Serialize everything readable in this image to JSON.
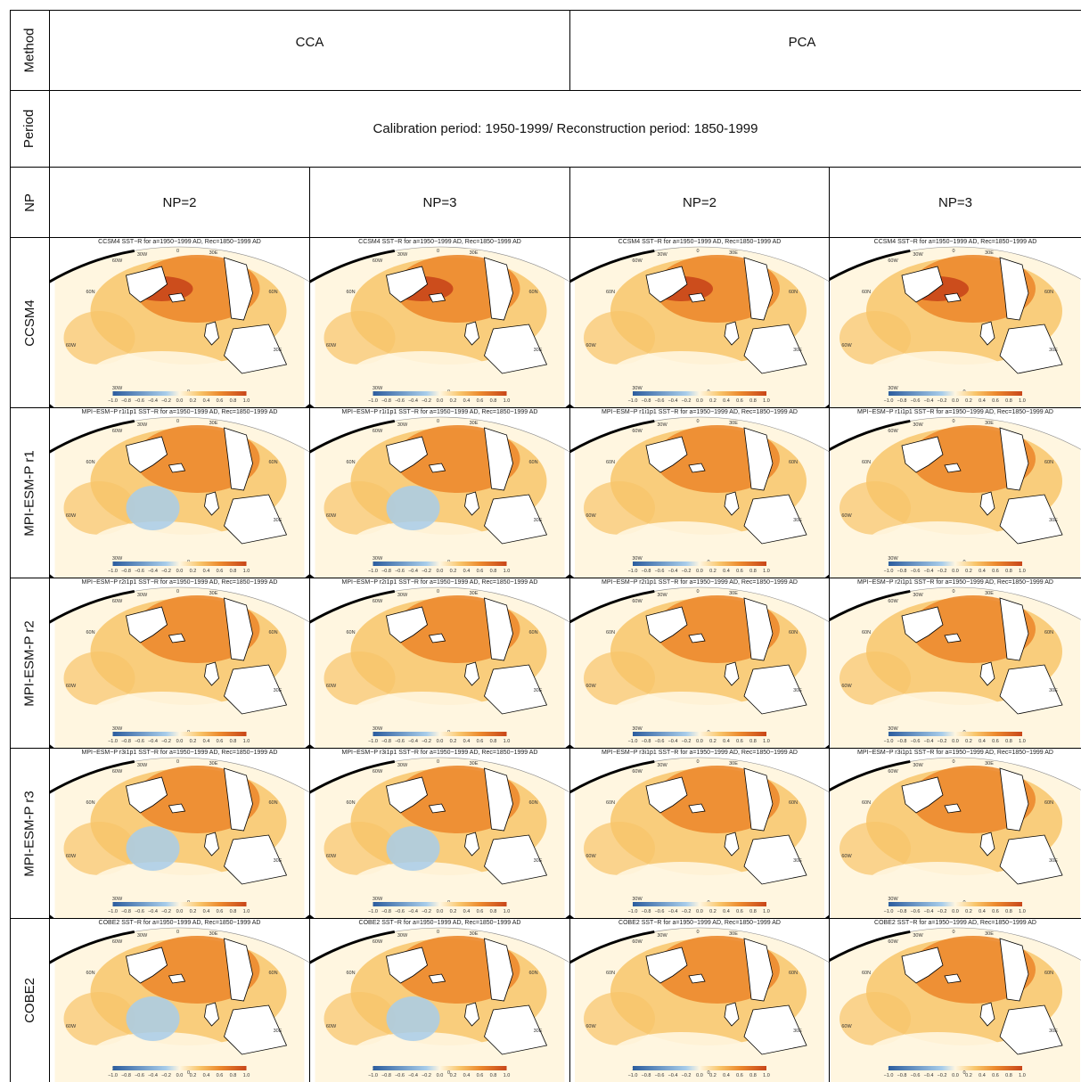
{
  "table": {
    "row_headers": {
      "method": "Method",
      "period": "Period",
      "np": "NP"
    },
    "method_values": [
      "CCA",
      "PCA"
    ],
    "period_value": "Calibration period: 1950-1999/ Reconstruction period: 1850-1999",
    "np_values": [
      "NP=2",
      "NP=3",
      "NP=2",
      "NP=3"
    ],
    "models": [
      {
        "label": "CCSM4",
        "titles": [
          "CCSM4 SST−R for a=1950−1999 AD, Rec=1850−1999 AD",
          "CCSM4 SST−R for a=1950−1999 AD, Rec=1850−1999 AD",
          "CCSM4 SST−R for a=1950−1999 AD, Rec=1850−1999 AD",
          "CCSM4 SST−R for a=1950−1999 AD, Rec=1850−1999 AD"
        ]
      },
      {
        "label": "MPI-ESM-P r1",
        "titles": [
          "MPI−ESM−P r1i1p1 SST−R for a=1950−1999 AD, Rec=1850−1999 AD",
          "MPI−ESM−P r1i1p1 SST−R for a=1950−1999 AD, Rec=1850−1999 AD",
          "MPI−ESM−P r1i1p1 SST−R for a=1950−1999 AD, Rec=1850−1999 AD",
          "MPI−ESM−P r1i1p1 SST−R for a=1950−1999 AD, Rec=1850−1999 AD"
        ]
      },
      {
        "label": "MPI-ESM-P r2",
        "titles": [
          "MPI−ESM−P r2i1p1 SST−R for a=1950−1999 AD, Rec=1850−1999 AD",
          "MPI−ESM−P r2i1p1 SST−R for a=1950−1999 AD, Rec=1850−1999 AD",
          "MPI−ESM−P r2i1p1 SST−R for a=1950−1999 AD, Rec=1850−1999 AD",
          "MPI−ESM−P r2i1p1 SST−R for a=1950−1999 AD, Rec=1850−1999 AD"
        ]
      },
      {
        "label": "MPI-ESM-P r3",
        "titles": [
          "MPI−ESM−P r3i1p1 SST−R for a=1950−1999 AD, Rec=1850−1999 AD",
          "MPI−ESM−P r3i1p1 SST−R for a=1950−1999 AD, Rec=1850−1999 AD",
          "MPI−ESM−P r3i1p1 SST−R for a=1950−1999 AD, Rec=1850−1999 AD",
          "MPI−ESM−P r3i1p1 SST−R for a=1950−1999 AD, Rec=1850−1999 AD"
        ]
      },
      {
        "label": "COBE2",
        "titles": [
          "COBE2 SST−R for a=1950−1999 AD, Rec=1850−1999 AD",
          "COBE2 SST−R for a=1950−1999 AD, Rec=1850−1999 AD",
          "COBE2 SST−R for a=1950−1999 AD, Rec=1850−1999 AD",
          "COBE2 SST−R for a=1950−1999 AD, Rec=1850−1999 AD"
        ]
      }
    ]
  },
  "map": {
    "grid_labels": {
      "w60": "60W",
      "w30": "30W",
      "zero": "0",
      "e30": "30E",
      "n60": "60N"
    },
    "colorbar_ticks": [
      "−1.0",
      "−0.8",
      "−0.6",
      "−0.4",
      "−0.2",
      "0.0",
      "0.2",
      "0.4",
      "0.6",
      "0.8",
      "1.0"
    ],
    "colors": {
      "positive_strong": "#c8461a",
      "positive_mid": "#ec8a2e",
      "positive_weak": "#f8c56a",
      "neutral": "#fff6e0",
      "negative": "#a8cdea",
      "negative_strong": "#2c5d9e",
      "land": "#ffffff"
    }
  }
}
